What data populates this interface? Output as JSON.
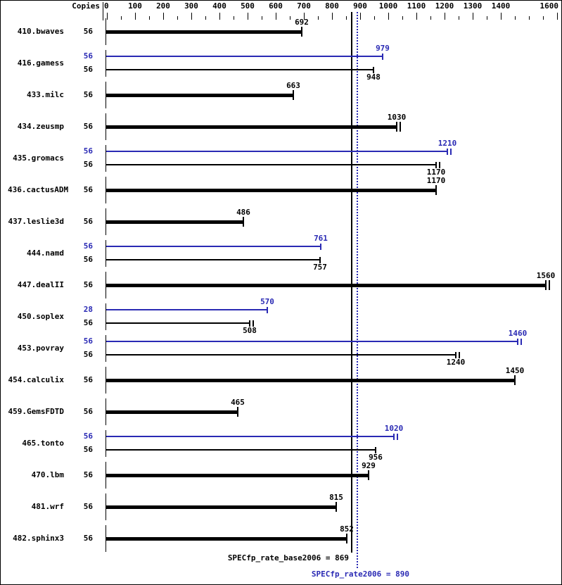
{
  "chart_data": {
    "type": "bar",
    "orientation": "horizontal",
    "copies_header": "Copies",
    "xlim": [
      0,
      1600
    ],
    "x_major_tick": 100,
    "x_minor_tick": 50,
    "x_tick_labels": [
      "0",
      "100",
      "200",
      "300",
      "400",
      "500",
      "600",
      "700",
      "800",
      "900",
      "1000",
      "1100",
      "1200",
      "1300",
      "1400",
      "1600"
    ],
    "unlabeled_major_ticks": [
      1500
    ],
    "grid": false,
    "series_colors": {
      "base": "#000000",
      "peak": "#2a2ab4"
    },
    "benchmarks": [
      {
        "name": "410.bwaves",
        "bars": [
          {
            "series": "base",
            "copies": 56,
            "value": 692,
            "thick": true,
            "label_pos": "above",
            "double_cap": false
          }
        ]
      },
      {
        "name": "416.gamess",
        "bars": [
          {
            "series": "peak",
            "copies": 56,
            "value": 979,
            "thick": false,
            "label_pos": "above",
            "double_cap": false
          },
          {
            "series": "base",
            "copies": 56,
            "value": 948,
            "thick": false,
            "label_pos": "below",
            "double_cap": false
          }
        ]
      },
      {
        "name": "433.milc",
        "bars": [
          {
            "series": "base",
            "copies": 56,
            "value": 663,
            "thick": true,
            "label_pos": "above",
            "double_cap": false
          }
        ]
      },
      {
        "name": "434.zeusmp",
        "bars": [
          {
            "series": "base",
            "copies": 56,
            "value": 1030,
            "thick": true,
            "label_pos": "above",
            "double_cap": true
          }
        ]
      },
      {
        "name": "435.gromacs",
        "bars": [
          {
            "series": "peak",
            "copies": 56,
            "value": 1210,
            "thick": false,
            "label_pos": "above",
            "double_cap": true
          },
          {
            "series": "base",
            "copies": 56,
            "value": 1170,
            "thick": false,
            "label_pos": "below",
            "double_cap": true
          }
        ]
      },
      {
        "name": "436.cactusADM",
        "bars": [
          {
            "series": "base",
            "copies": 56,
            "value": 1170,
            "thick": true,
            "label_pos": "above",
            "double_cap": false
          }
        ]
      },
      {
        "name": "437.leslie3d",
        "bars": [
          {
            "series": "base",
            "copies": 56,
            "value": 486,
            "thick": true,
            "label_pos": "above",
            "double_cap": false
          }
        ]
      },
      {
        "name": "444.namd",
        "bars": [
          {
            "series": "peak",
            "copies": 56,
            "value": 761,
            "thick": false,
            "label_pos": "above",
            "double_cap": false
          },
          {
            "series": "base",
            "copies": 56,
            "value": 757,
            "thick": false,
            "label_pos": "below",
            "double_cap": false
          }
        ]
      },
      {
        "name": "447.dealII",
        "bars": [
          {
            "series": "base",
            "copies": 56,
            "value": 1560,
            "thick": true,
            "label_pos": "above",
            "double_cap": true
          }
        ]
      },
      {
        "name": "450.soplex",
        "bars": [
          {
            "series": "peak",
            "copies": 28,
            "value": 570,
            "thick": false,
            "label_pos": "above",
            "double_cap": false
          },
          {
            "series": "base",
            "copies": 56,
            "value": 508,
            "thick": false,
            "label_pos": "below",
            "double_cap": true
          }
        ]
      },
      {
        "name": "453.povray",
        "bars": [
          {
            "series": "peak",
            "copies": 56,
            "value": 1460,
            "thick": false,
            "label_pos": "above",
            "double_cap": true
          },
          {
            "series": "base",
            "copies": 56,
            "value": 1240,
            "thick": false,
            "label_pos": "below",
            "double_cap": true
          }
        ]
      },
      {
        "name": "454.calculix",
        "bars": [
          {
            "series": "base",
            "copies": 56,
            "value": 1450,
            "thick": true,
            "label_pos": "above",
            "double_cap": false
          }
        ]
      },
      {
        "name": "459.GemsFDTD",
        "bars": [
          {
            "series": "base",
            "copies": 56,
            "value": 465,
            "thick": true,
            "label_pos": "above",
            "double_cap": false
          }
        ]
      },
      {
        "name": "465.tonto",
        "bars": [
          {
            "series": "peak",
            "copies": 56,
            "value": 1020,
            "thick": false,
            "label_pos": "above",
            "double_cap": true
          },
          {
            "series": "base",
            "copies": 56,
            "value": 956,
            "thick": false,
            "label_pos": "below",
            "double_cap": false
          }
        ]
      },
      {
        "name": "470.lbm",
        "bars": [
          {
            "series": "base",
            "copies": 56,
            "value": 929,
            "thick": true,
            "label_pos": "above",
            "double_cap": false
          }
        ]
      },
      {
        "name": "481.wrf",
        "bars": [
          {
            "series": "base",
            "copies": 56,
            "value": 815,
            "thick": true,
            "label_pos": "above",
            "double_cap": false
          }
        ]
      },
      {
        "name": "482.sphinx3",
        "bars": [
          {
            "series": "base",
            "copies": 56,
            "value": 852,
            "thick": true,
            "label_pos": "above",
            "double_cap": false
          }
        ]
      }
    ],
    "reference_lines": [
      {
        "series": "base",
        "value": 869,
        "style": "solid",
        "color": "#000000"
      },
      {
        "series": "peak",
        "value": 890,
        "style": "dotted",
        "color": "#2a2ab4"
      }
    ],
    "summary": {
      "base": {
        "label": "SPECfp_rate_base2006",
        "value": 869,
        "display": "SPECfp_rate_base2006 = 869"
      },
      "peak": {
        "label": "SPECfp_rate2006",
        "value": 890,
        "display": "SPECfp_rate2006 = 890"
      }
    }
  }
}
